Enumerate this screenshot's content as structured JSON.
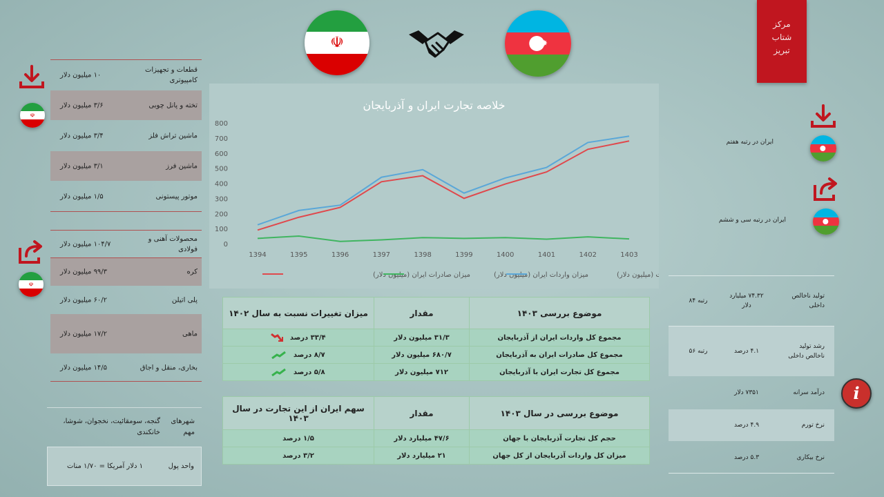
{
  "badge": {
    "line1": "مرکز",
    "line2": "شتاب",
    "line3": "تبریز"
  },
  "colors": {
    "accent_red": "#c0161f",
    "export_line": "#e0484c",
    "import_line": "#3fb560",
    "total_line": "#5aa7d8"
  },
  "icons": {
    "left_top": "download-icon",
    "left_mid": "share-icon",
    "handshake": "handshake-icon",
    "info": "info-icon"
  },
  "exports_list": [
    {
      "name": "قطعات و تجهیزات کامپیوتری",
      "value": "۱۰ میلیون دلار"
    },
    {
      "name": "تخته و پانل چوبی",
      "value": "۳/۶ میلیون دلار"
    },
    {
      "name": "ماشین تراش فلز",
      "value": "۳/۴ میلیون دلار"
    },
    {
      "name": "ماشین فرز",
      "value": "۳/۱ میلیون دلار"
    },
    {
      "name": "موتور پیستونی",
      "value": "۱/۵ میلیون دلار"
    }
  ],
  "imports_list": [
    {
      "name": "محصولات آهنی و فولادی",
      "value": "۱۰۴/۷ میلیون دلار"
    },
    {
      "name": "کره",
      "value": "۹۹/۳ میلیون دلار"
    },
    {
      "name": "پلی اتیلن",
      "value": "۶۰/۲ میلیون دلار"
    },
    {
      "name": "ماهی",
      "value": "۱۷/۲ میلیون دلار"
    },
    {
      "name": "بخاری، منقل و اجاق",
      "value": "۱۴/۵ میلیون دلار"
    }
  ],
  "cities": {
    "label": "شهرهای مهم",
    "value": "گنجه، سومقائیت، نخجوان، شوشا، خانکندی"
  },
  "currency": {
    "label": "واحد پول",
    "value": "۱ دلار آمریکا = ۱/۷۰ منات"
  },
  "chart_data": {
    "type": "line",
    "title": "خلاصه تجارت ایران و آذربایجان",
    "categories": [
      "1394",
      "1395",
      "1396",
      "1397",
      "1398",
      "1399",
      "1400",
      "1401",
      "1402",
      "1403"
    ],
    "ylim": [
      0,
      800
    ],
    "yticks": [
      "0",
      "100",
      "200",
      "300",
      "400",
      "500",
      "600",
      "700",
      "800"
    ],
    "legend_placement": "bottom",
    "series": [
      {
        "name": "میزان صادرات ایران (میلیون دلار)",
        "color": "#e0484c",
        "values": [
          90,
          175,
          240,
          410,
          450,
          300,
          395,
          475,
          625,
          680
        ]
      },
      {
        "name": "میزان واردات ایران (میلیون دلار)",
        "color": "#3fb560",
        "values": [
          35,
          50,
          15,
          25,
          40,
          35,
          40,
          30,
          45,
          31.3
        ]
      },
      {
        "name": "حجم کل تجارت (میلیون دلار)",
        "color": "#5aa7d8",
        "values": [
          125,
          220,
          255,
          440,
          490,
          335,
          435,
          505,
          670,
          712
        ]
      }
    ]
  },
  "table1": {
    "headers": [
      "موضوع بررسی ۱۴۰۳",
      "مقدار",
      "میزان تغییرات نسبت به سال ۱۴۰۲"
    ],
    "rows": [
      {
        "topic": "مجموع کل واردات ایران از آذربایجان",
        "amount": "۳۱/۳ میلیون دلار",
        "change": "۳۳/۴ درصد",
        "trend": "down"
      },
      {
        "topic": "مجموع کل صادرات ایران به آذربایجان",
        "amount": "۶۸۰/۷ میلیون دلار",
        "change": "۸/۷ درصد",
        "trend": "up"
      },
      {
        "topic": "مجموع کل تجارت ایران با آذربایجان",
        "amount": "۷۱۲ میلیون دلار",
        "change": "۵/۸ درصد",
        "trend": "up"
      }
    ]
  },
  "table2": {
    "headers": [
      "موضوع بررسی در سال ۱۴۰۳",
      "مقدار",
      "سهم ایران از این تجارت در سال ۱۴۰۳"
    ],
    "rows": [
      {
        "topic": "حجم کل تجارت آذربایجان با جهان",
        "amount": "۴۷/۶ میلیارد دلار",
        "share": "۱/۵ درصد"
      },
      {
        "topic": "میزان کل واردات آذربایجان از کل جهان",
        "amount": "۲۱ میلیارد دلار",
        "share": "۳/۲ درصد"
      }
    ]
  },
  "rank_import": "ایران در رتبه هفتم",
  "rank_export": "ایران در رتبه سی و ششم",
  "stats": [
    {
      "label": "تولید ناخالص داخلی",
      "value": "۷۴.۳۲ میلیارد دلار",
      "rank": "رتبه ۸۴"
    },
    {
      "label": "رشد تولید ناخالص داخلی",
      "value": "۴.۱ درصد",
      "rank": "رتبه ۵۶"
    },
    {
      "label": "درآمد سرانه",
      "value": "۷۳۵۱ دلار",
      "rank": ""
    },
    {
      "label": "نرخ تورم",
      "value": "۴.۹ درصد",
      "rank": ""
    },
    {
      "label": "نرخ بیکاری",
      "value": "۵.۳ درصد",
      "rank": ""
    }
  ]
}
